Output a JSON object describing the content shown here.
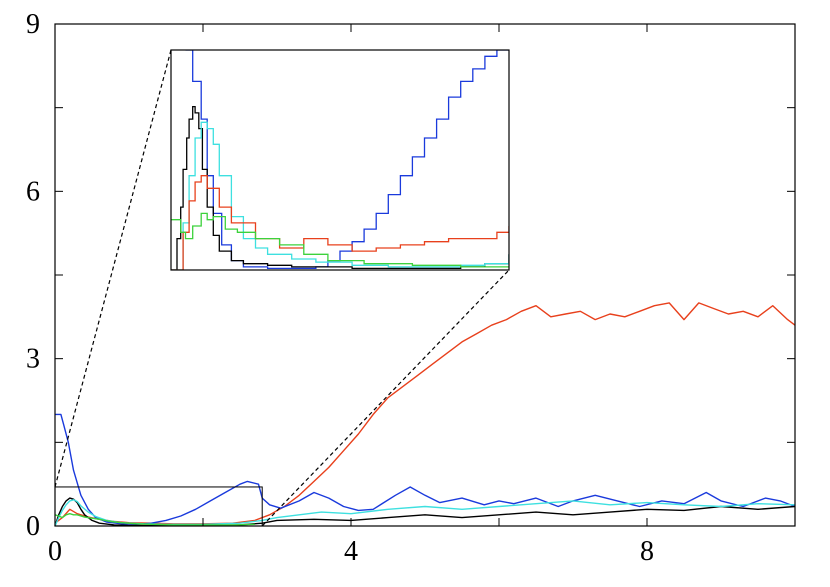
{
  "chart_data": {
    "type": "line",
    "title": "",
    "xlabel": "",
    "ylabel": "",
    "xlim": [
      0,
      10
    ],
    "ylim": [
      0,
      9
    ],
    "grid": false,
    "x_ticks": [
      0,
      4,
      8
    ],
    "y_ticks": [
      0,
      3,
      6,
      9
    ],
    "x_tick_labels": [
      "0",
      "4",
      "8"
    ],
    "y_tick_labels": [
      "0",
      "3",
      "6",
      "9"
    ],
    "series": [
      {
        "color": "#e8401c",
        "x": [
          0,
          0.1,
          0.2,
          0.3,
          0.45,
          0.6,
          0.8,
          1.0,
          1.3,
          1.6,
          2.0,
          2.4,
          2.7,
          2.9,
          3.1,
          3.3,
          3.5,
          3.7,
          3.9,
          4.1,
          4.3,
          4.5,
          4.7,
          4.9,
          5.1,
          5.3,
          5.5,
          5.7,
          5.9,
          6.1,
          6.3,
          6.5,
          6.7,
          6.9,
          7.1,
          7.3,
          7.5,
          7.7,
          7.9,
          8.1,
          8.3,
          8.5,
          8.7,
          8.9,
          9.1,
          9.3,
          9.5,
          9.7,
          9.9,
          10.0
        ],
        "y": [
          0.05,
          0.15,
          0.3,
          0.22,
          0.16,
          0.12,
          0.08,
          0.06,
          0.05,
          0.04,
          0.04,
          0.05,
          0.1,
          0.2,
          0.35,
          0.55,
          0.8,
          1.05,
          1.35,
          1.65,
          2.0,
          2.3,
          2.5,
          2.7,
          2.9,
          3.1,
          3.3,
          3.45,
          3.6,
          3.7,
          3.85,
          3.95,
          3.75,
          3.8,
          3.85,
          3.7,
          3.8,
          3.75,
          3.85,
          3.95,
          4.0,
          3.7,
          4.0,
          3.9,
          3.8,
          3.85,
          3.75,
          3.95,
          3.7,
          3.6
        ]
      },
      {
        "color": "#1a3adc",
        "x": [
          0,
          0.08,
          0.12,
          0.18,
          0.25,
          0.35,
          0.45,
          0.55,
          0.7,
          0.9,
          1.1,
          1.3,
          1.5,
          1.7,
          1.9,
          2.1,
          2.3,
          2.5,
          2.6,
          2.75,
          2.8,
          2.9,
          3.05,
          3.3,
          3.5,
          3.7,
          3.9,
          4.1,
          4.3,
          4.6,
          4.8,
          5.0,
          5.2,
          5.5,
          5.8,
          6.0,
          6.2,
          6.5,
          6.8,
          7.0,
          7.3,
          7.6,
          7.9,
          8.2,
          8.5,
          8.8,
          9.0,
          9.3,
          9.6,
          9.8,
          10.0
        ],
        "y": [
          2.0,
          2.0,
          1.8,
          1.5,
          1.0,
          0.55,
          0.3,
          0.15,
          0.07,
          0.04,
          0.03,
          0.05,
          0.1,
          0.18,
          0.3,
          0.45,
          0.6,
          0.75,
          0.8,
          0.75,
          0.5,
          0.38,
          0.32,
          0.45,
          0.6,
          0.5,
          0.35,
          0.28,
          0.3,
          0.55,
          0.7,
          0.55,
          0.42,
          0.5,
          0.38,
          0.45,
          0.4,
          0.5,
          0.35,
          0.45,
          0.55,
          0.45,
          0.35,
          0.45,
          0.4,
          0.6,
          0.45,
          0.35,
          0.5,
          0.45,
          0.35
        ]
      },
      {
        "color": "#000000",
        "x": [
          0,
          0.05,
          0.1,
          0.15,
          0.2,
          0.25,
          0.3,
          0.35,
          0.4,
          0.5,
          0.6,
          0.8,
          1.0,
          1.5,
          2.0,
          2.5,
          2.8,
          3.0,
          3.5,
          4.0,
          4.5,
          5.0,
          5.5,
          6.0,
          6.5,
          7.0,
          7.5,
          8.0,
          8.5,
          9.0,
          9.5,
          10.0
        ],
        "y": [
          0.0,
          0.2,
          0.35,
          0.45,
          0.5,
          0.48,
          0.42,
          0.3,
          0.2,
          0.1,
          0.05,
          0.02,
          0.01,
          0.01,
          0.01,
          0.02,
          0.05,
          0.1,
          0.12,
          0.1,
          0.15,
          0.2,
          0.15,
          0.2,
          0.25,
          0.2,
          0.25,
          0.3,
          0.28,
          0.35,
          0.3,
          0.35
        ]
      },
      {
        "color": "#3ee0e0",
        "x": [
          0,
          0.05,
          0.1,
          0.15,
          0.2,
          0.25,
          0.3,
          0.35,
          0.45,
          0.55,
          0.7,
          0.9,
          1.2,
          1.5,
          2.0,
          2.5,
          2.8,
          3.0,
          3.3,
          3.6,
          4.0,
          4.5,
          5.0,
          5.5,
          6.0,
          6.5,
          7.0,
          7.5,
          8.0,
          8.5,
          9.0,
          9.5,
          10.0
        ],
        "y": [
          0.0,
          0.15,
          0.28,
          0.38,
          0.45,
          0.47,
          0.44,
          0.36,
          0.25,
          0.17,
          0.1,
          0.06,
          0.04,
          0.03,
          0.03,
          0.05,
          0.1,
          0.15,
          0.2,
          0.25,
          0.22,
          0.3,
          0.35,
          0.3,
          0.35,
          0.4,
          0.45,
          0.38,
          0.42,
          0.38,
          0.35,
          0.4,
          0.38
        ]
      },
      {
        "color": "#3cd23c",
        "x": [
          0,
          0.05,
          0.1,
          0.15,
          0.2,
          0.25,
          0.3,
          0.4,
          0.5,
          0.6,
          0.75,
          0.9,
          1.1,
          1.3,
          1.6,
          2.0,
          2.4,
          2.7
        ],
        "y": [
          0.2,
          0.18,
          0.15,
          0.2,
          0.22,
          0.2,
          0.2,
          0.16,
          0.14,
          0.12,
          0.08,
          0.06,
          0.04,
          0.03,
          0.02,
          0.02,
          0.02,
          0.03
        ]
      }
    ],
    "inset": {
      "source_region": {
        "x": [
          0,
          2.8
        ],
        "y": [
          0,
          0.7
        ]
      },
      "series": [
        {
          "color": "#1a3adc",
          "x": [
            0.12,
            0.18,
            0.25,
            0.3,
            0.35,
            0.42,
            0.5,
            0.6,
            0.8,
            1.0,
            1.2,
            1.3,
            1.4,
            1.5,
            1.6,
            1.7,
            1.8,
            1.9,
            2.0,
            2.1,
            2.2,
            2.3,
            2.4,
            2.5,
            2.6,
            2.7,
            2.8
          ],
          "y": [
            0.7,
            0.6,
            0.48,
            0.3,
            0.18,
            0.08,
            0.03,
            0.01,
            0.005,
            0.005,
            0.01,
            0.03,
            0.06,
            0.09,
            0.13,
            0.18,
            0.24,
            0.3,
            0.36,
            0.42,
            0.48,
            0.55,
            0.6,
            0.64,
            0.68,
            0.7,
            0.7
          ]
        },
        {
          "color": "#000000",
          "x": [
            0,
            0.05,
            0.08,
            0.1,
            0.13,
            0.15,
            0.18,
            0.2,
            0.23,
            0.26,
            0.3,
            0.35,
            0.4,
            0.5,
            0.6,
            0.8,
            1.0,
            1.5,
            2.0,
            2.4,
            2.6,
            2.8
          ],
          "y": [
            0.0,
            0.1,
            0.2,
            0.32,
            0.42,
            0.48,
            0.52,
            0.5,
            0.45,
            0.32,
            0.2,
            0.11,
            0.06,
            0.03,
            0.02,
            0.015,
            0.01,
            0.005,
            0.005,
            0.01,
            0.02,
            0.05
          ]
        },
        {
          "color": "#3ee0e0",
          "x": [
            0,
            0.1,
            0.15,
            0.2,
            0.25,
            0.3,
            0.35,
            0.4,
            0.5,
            0.6,
            0.7,
            0.8,
            1.0,
            1.2,
            1.5,
            1.8,
            2.0,
            2.2,
            2.4,
            2.6,
            2.8
          ],
          "y": [
            0.0,
            0.15,
            0.3,
            0.42,
            0.47,
            0.45,
            0.4,
            0.3,
            0.17,
            0.1,
            0.07,
            0.05,
            0.035,
            0.025,
            0.015,
            0.01,
            0.01,
            0.01,
            0.015,
            0.02,
            0.05
          ]
        },
        {
          "color": "#e8401c",
          "x": [
            0,
            0.1,
            0.15,
            0.2,
            0.25,
            0.3,
            0.4,
            0.5,
            0.7,
            0.9,
            1.1,
            1.3,
            1.5,
            1.7,
            1.9,
            2.1,
            2.3,
            2.5,
            2.7,
            2.8
          ],
          "y": [
            0.0,
            0.12,
            0.22,
            0.28,
            0.3,
            0.26,
            0.2,
            0.15,
            0.1,
            0.07,
            0.1,
            0.08,
            0.06,
            0.07,
            0.08,
            0.09,
            0.1,
            0.1,
            0.12,
            0.14
          ]
        },
        {
          "color": "#3cd23c",
          "x": [
            0,
            0.08,
            0.12,
            0.18,
            0.25,
            0.3,
            0.35,
            0.45,
            0.55,
            0.7,
            0.9,
            1.1,
            1.3,
            1.6,
            2.0,
            2.4,
            2.8
          ],
          "y": [
            0.16,
            0.12,
            0.1,
            0.14,
            0.18,
            0.16,
            0.17,
            0.13,
            0.12,
            0.1,
            0.08,
            0.05,
            0.03,
            0.02,
            0.015,
            0.01,
            0.01
          ]
        }
      ]
    }
  }
}
